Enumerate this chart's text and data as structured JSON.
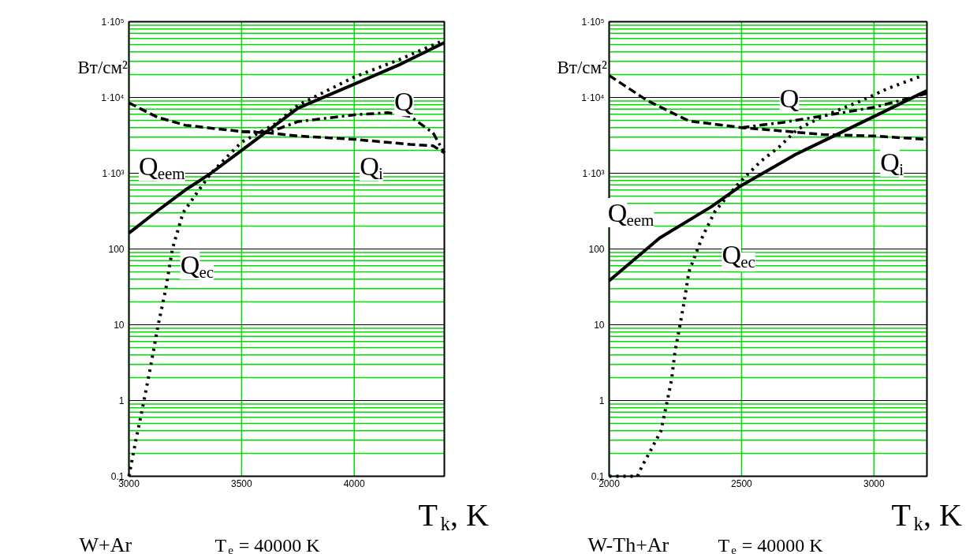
{
  "chart_data": [
    {
      "type": "line",
      "title": "W+Ar",
      "subtitle": "T$_{e}$ = 40000 K",
      "xlabel": "T$_{k}$, K",
      "ylabel": "Вт/см²",
      "log": "y",
      "grid": true,
      "xlim": [
        3000,
        4400
      ],
      "xticks": [
        3000,
        3500,
        4000
      ],
      "ylim": [
        0.1,
        100000
      ],
      "yticks": [
        0.1,
        1,
        10,
        100,
        {
          "value": 1000,
          "label": "1·10³"
        },
        {
          "value": 10000,
          "label": "1·10⁴"
        },
        {
          "value": 100000,
          "label": "1·10⁵"
        }
      ],
      "series": [
        {
          "name": "Q",
          "color": "#000000",
          "line_style": "dashdot",
          "x": [
            3500,
            3625,
            3750,
            4000,
            4150,
            4250,
            4350,
            4400
          ],
          "values": [
            3550,
            3500,
            4800,
            5900,
            6300,
            5600,
            3400,
            1860
          ]
        },
        {
          "name": "Q$_{i}$",
          "color": "#000000",
          "line_style": "dashed",
          "x": [
            3000,
            3125,
            3250,
            3500,
            3625,
            3750,
            4000,
            4250,
            4350,
            4400
          ],
          "values": [
            8500,
            5500,
            4300,
            3550,
            3400,
            3100,
            2800,
            2400,
            2300,
            1860
          ]
        },
        {
          "name": "Q$_{eem}$",
          "color": "#000000",
          "line_style": "solid",
          "x": [
            3000,
            3125,
            3250,
            3364,
            3500,
            3750,
            4000,
            4200,
            4400
          ],
          "values": [
            162,
            316,
            600,
            1000,
            2000,
            7200,
            15000,
            27000,
            53000
          ]
        },
        {
          "name": "Q$_{ec}$",
          "color": "#000000",
          "line_style": "dotted",
          "x": [
            3000,
            3031,
            3067,
            3098,
            3130,
            3164,
            3193,
            3240,
            3300,
            3364,
            3500,
            3650,
            3750,
            4000,
            4200,
            4400
          ],
          "values": [
            0.1,
            0.3,
            1,
            3,
            10,
            30,
            100,
            300,
            540,
            1000,
            2570,
            4470,
            7900,
            18600,
            31600,
            57000
          ]
        }
      ]
    },
    {
      "type": "line",
      "title": "W-Th+Ar",
      "subtitle": "T$_{e}$ = 40000 K",
      "xlabel": "T$_{k}$, K",
      "ylabel": "Вт/см²",
      "log": "y",
      "grid": true,
      "xlim": [
        2000,
        3200
      ],
      "xticks": [
        2000,
        2500,
        3000
      ],
      "ylim": [
        0.1,
        100000
      ],
      "yticks": [
        0.1,
        1,
        10,
        100,
        {
          "value": 1000,
          "label": "1·10³"
        },
        {
          "value": 10000,
          "label": "1·10⁴"
        },
        {
          "value": 100000,
          "label": "1·10⁵"
        }
      ],
      "series": [
        {
          "name": "Q",
          "color": "#000000",
          "line_style": "dashdot",
          "x": [
            2500,
            2659,
            2806,
            3000,
            3200
          ],
          "values": [
            4000,
            4700,
            5700,
            7400,
            11300
          ]
        },
        {
          "name": "Q$_{i}$",
          "color": "#000000",
          "line_style": "dashed",
          "x": [
            2000,
            2144,
            2301,
            2500,
            2659,
            2806,
            3000,
            3200
          ],
          "values": [
            19500,
            9100,
            4900,
            4000,
            3600,
            3240,
            3100,
            2800
          ]
        },
        {
          "name": "Q$_{eem}$",
          "color": "#000000",
          "line_style": "solid",
          "x": [
            2000,
            2191,
            2385,
            2500,
            2700,
            2848,
            3000,
            3200
          ],
          "values": [
            38,
            140,
            360,
            690,
            1740,
            3100,
            5600,
            12300
          ]
        },
        {
          "name": "Q$_{ec}$",
          "color": "#000000",
          "line_style": "dotted",
          "x": [
            2000,
            2107,
            2123,
            2160,
            2196,
            2217,
            2236,
            2249,
            2268,
            2286,
            2301,
            2354,
            2401,
            2490,
            2574,
            2643,
            2711,
            2806,
            2947,
            3047,
            3184
          ],
          "values": [
            0.1,
            0.1,
            0.133,
            0.23,
            0.4,
            0.9,
            1.9,
            4.5,
            10,
            23,
            50,
            150,
            320,
            740,
            1450,
            2240,
            3800,
            5600,
            8900,
            12900,
            19500
          ]
        }
      ]
    }
  ]
}
